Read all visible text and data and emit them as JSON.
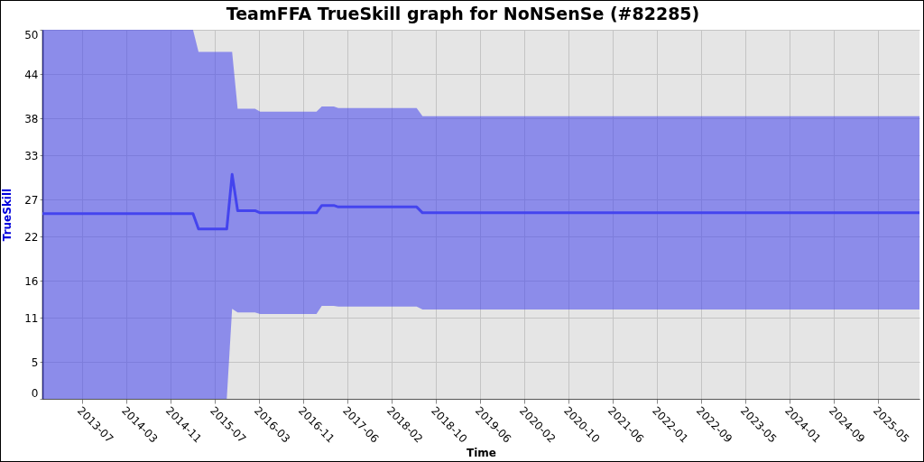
{
  "chart_data": {
    "type": "line",
    "title": "TeamFFA TrueSkill graph for NoNSenSe (#82285)",
    "xlabel": "Time",
    "ylabel": "TrueSkill",
    "x": [
      "2012-12-19",
      "2015-03-15",
      "2015-04-14",
      "2015-09-14",
      "2015-10-13",
      "2015-11-12",
      "2016-02-14",
      "2016-03-13",
      "2017-01-12",
      "2017-02-10",
      "2017-04-16",
      "2017-05-11",
      "2018-07-09",
      "2018-08-10",
      "2025-12-24"
    ],
    "series": [
      {
        "color": "#4444ee",
        "values": [
          25.1,
          25.1,
          23.0,
          23.0,
          30.4,
          25.5,
          25.5,
          25.2,
          25.2,
          26.2,
          26.2,
          26.0,
          26.0,
          25.2,
          25.2
        ],
        "lower": [
          0,
          0,
          0,
          0,
          12.2,
          11.7,
          11.7,
          11.5,
          11.5,
          12.6,
          12.6,
          12.5,
          12.5,
          12.1,
          12.1
        ],
        "upper": [
          50,
          50,
          47.0,
          47.0,
          47.0,
          39.3,
          39.3,
          38.9,
          38.9,
          39.6,
          39.6,
          39.4,
          39.4,
          38.3,
          38.3
        ]
      }
    ],
    "xlim": [
      "2012-12-19",
      "2025-12-24"
    ],
    "xticks": [
      {
        "value": "2013-07-22",
        "label": "2013-07"
      },
      {
        "value": "2014-03-19",
        "label": "2014-03"
      },
      {
        "value": "2014-11-13",
        "label": "2014-11"
      },
      {
        "value": "2015-07-11",
        "label": "2015-07"
      },
      {
        "value": "2016-03-06",
        "label": "2016-03"
      },
      {
        "value": "2016-11-01",
        "label": "2016-11"
      },
      {
        "value": "2017-06-29",
        "label": "2017-06"
      },
      {
        "value": "2018-02-23",
        "label": "2018-02"
      },
      {
        "value": "2018-10-21",
        "label": "2018-10"
      },
      {
        "value": "2019-06-17",
        "label": "2019-06"
      },
      {
        "value": "2020-02-12",
        "label": "2020-02"
      },
      {
        "value": "2020-10-09",
        "label": "2020-10"
      },
      {
        "value": "2021-06-05",
        "label": "2021-06"
      },
      {
        "value": "2022-01-31",
        "label": "2022-01"
      },
      {
        "value": "2022-09-27",
        "label": "2022-09"
      },
      {
        "value": "2023-05-25",
        "label": "2023-05"
      },
      {
        "value": "2024-01-20",
        "label": "2024-01"
      },
      {
        "value": "2024-09-15",
        "label": "2024-09"
      },
      {
        "value": "2025-05-13",
        "label": "2025-05"
      }
    ],
    "ylim": [
      0,
      50
    ],
    "yticks": [
      0,
      5,
      11,
      16,
      22,
      27,
      33,
      38,
      44,
      50
    ],
    "grid": true
  }
}
